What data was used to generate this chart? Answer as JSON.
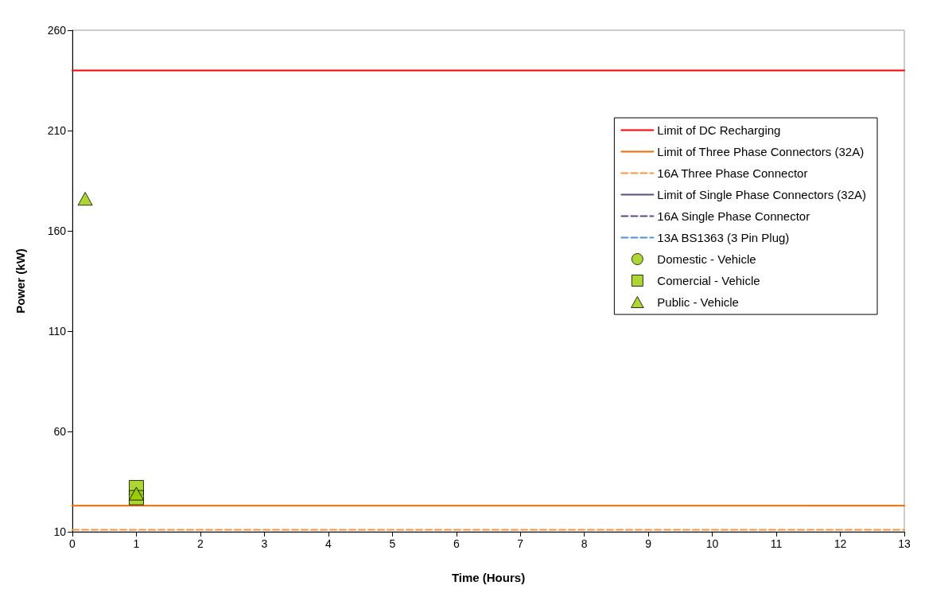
{
  "chart_data": {
    "type": "line",
    "xlabel": "Time (Hours)",
    "ylabel": "Power (kW)",
    "xlim": [
      0,
      13
    ],
    "xticks": [
      0,
      1,
      2,
      3,
      4,
      5,
      6,
      7,
      8,
      9,
      10,
      11,
      12,
      13
    ],
    "ylim": [
      10,
      260
    ],
    "yticks": [
      10,
      60,
      110,
      160,
      210,
      260
    ],
    "grid": false,
    "legend": "top right",
    "series": [
      {
        "name": "Limit of DC Recharging",
        "color": "#ff0000",
        "line_style": "solid",
        "marker": "none",
        "x": [
          0,
          13
        ],
        "values": [
          240,
          240
        ]
      },
      {
        "name": "Limit of Three Phase Connectors (32A)",
        "color": "#e46c0a",
        "line_style": "solid",
        "marker": "none",
        "x": [
          0,
          13
        ],
        "values": [
          23,
          23
        ]
      },
      {
        "name": "16A Three Phase Connector",
        "color": "#f79646",
        "line_style": "dashed",
        "marker": "none",
        "x": [
          0,
          13
        ],
        "values": [
          11,
          11
        ]
      },
      {
        "name": "Limit of Single Phase Connectors (32A)",
        "color": "#604a7b",
        "line_style": "solid",
        "marker": "none"
      },
      {
        "name": "16A Single Phase Connector",
        "color": "#604a7b",
        "line_style": "dashed",
        "marker": "none"
      },
      {
        "name": "13A BS1363 (3 Pin Plug)",
        "color": "#558ed5",
        "line_style": "dashed",
        "marker": "none"
      },
      {
        "name": "Domestic - Vehicle",
        "type": "scatter",
        "color": "#99cc00",
        "marker": "circle"
      },
      {
        "name": "Comercial - Vehicle",
        "type": "scatter",
        "color": "#99cc00",
        "marker": "square",
        "x": [
          1,
          1
        ],
        "values": [
          32,
          27
        ]
      },
      {
        "name": "Public - Vehicle",
        "type": "scatter",
        "color": "#99cc00",
        "marker": "triangle",
        "x": [
          0.2,
          1
        ],
        "values": [
          176,
          29
        ]
      }
    ]
  }
}
